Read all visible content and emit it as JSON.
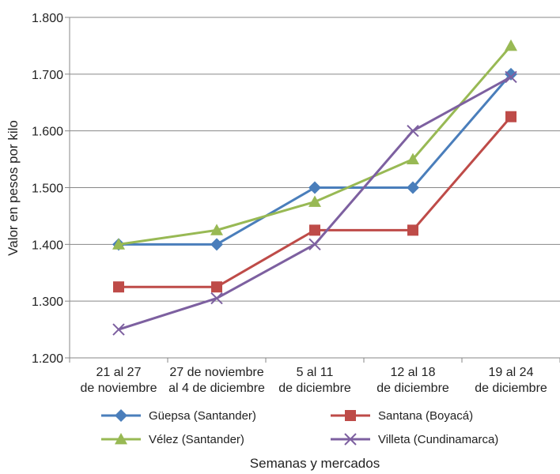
{
  "chart_data": {
    "type": "line",
    "xlabel": "Semanas y mercados",
    "ylabel": "Valor en pesos por kilo",
    "ylim": [
      1200,
      1800
    ],
    "yticks": [
      1200,
      1300,
      1400,
      1500,
      1600,
      1700,
      1800
    ],
    "ytick_labels": [
      "1.200",
      "1.300",
      "1.400",
      "1.500",
      "1.600",
      "1.700",
      "1.800"
    ],
    "categories": [
      [
        "21 al 27",
        "de noviembre"
      ],
      [
        "27 de noviembre",
        "al 4 de diciembre"
      ],
      [
        "5 al 11",
        "de diciembre"
      ],
      [
        "12 al 18",
        "de diciembre"
      ],
      [
        "19 al 24",
        "de diciembre"
      ]
    ],
    "grid": true,
    "legend_position": "bottom",
    "series": [
      {
        "name": "Güepsa (Santander)",
        "values": [
          1400,
          1400,
          1500,
          1500,
          1700
        ],
        "color": "#4a7ebb",
        "marker": "diamond"
      },
      {
        "name": "Santana (Boyacá)",
        "values": [
          1325,
          1325,
          1425,
          1425,
          1625
        ],
        "color": "#be4b48",
        "marker": "square"
      },
      {
        "name": "Vélez (Santander)",
        "values": [
          1400,
          1425,
          1475,
          1550,
          1750
        ],
        "color": "#98b954",
        "marker": "triangle"
      },
      {
        "name": "Villeta (Cundinamarca)",
        "values": [
          1250,
          1305,
          1400,
          1600,
          1695
        ],
        "color": "#7d60a0",
        "marker": "x"
      }
    ]
  }
}
